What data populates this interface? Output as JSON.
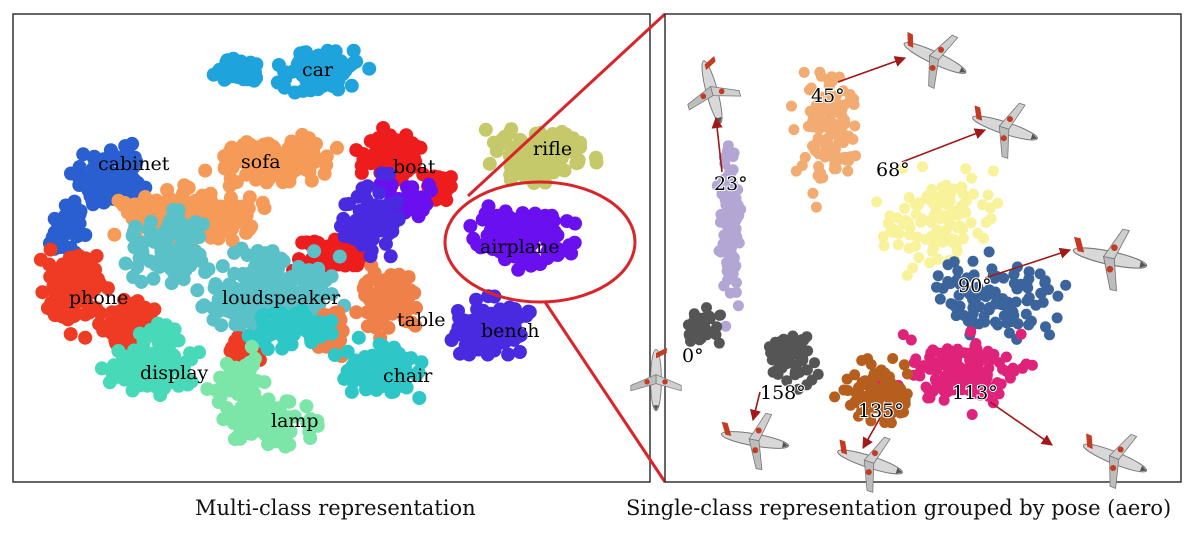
{
  "panels": {
    "left": {
      "caption": "Multi-class representation",
      "clusters": [
        {
          "name": "car",
          "label": "car",
          "color": "#1ea3dc"
        },
        {
          "name": "cabinet",
          "label": "cabinet",
          "color": "#2a5fd1"
        },
        {
          "name": "sofa",
          "label": "sofa",
          "color": "#f59a57"
        },
        {
          "name": "boat",
          "label": "boat",
          "color": "#ee1c1c"
        },
        {
          "name": "rifle",
          "label": "rifle",
          "color": "#c5c96a"
        },
        {
          "name": "airplane",
          "label": "airplane",
          "color": "#6a0ff0"
        },
        {
          "name": "phone",
          "label": "phone",
          "color": "#ef3b24"
        },
        {
          "name": "loudspeaker",
          "label": "loudspeaker",
          "color": "#5bc1c9"
        },
        {
          "name": "table",
          "label": "table",
          "color": "#f0804a"
        },
        {
          "name": "bench",
          "label": "bench",
          "color": "#4a2ae0"
        },
        {
          "name": "display",
          "label": "display",
          "color": "#48d9b8"
        },
        {
          "name": "chair",
          "label": "chair",
          "color": "#2ec7c7"
        },
        {
          "name": "lamp",
          "label": "lamp",
          "color": "#7ce6a8"
        }
      ]
    },
    "right": {
      "caption": "Single-class representation grouped by pose (aero)",
      "poses": [
        {
          "name": "0",
          "label": "0°",
          "color": "#555555"
        },
        {
          "name": "23",
          "label": "23°",
          "color": "#b4a6d4"
        },
        {
          "name": "45",
          "label": "45°",
          "color": "#f2ac72"
        },
        {
          "name": "68",
          "label": "68°",
          "color": "#f8f29a"
        },
        {
          "name": "90",
          "label": "90°",
          "color": "#3c649c"
        },
        {
          "name": "113",
          "label": "113°",
          "color": "#e0237a"
        },
        {
          "name": "135",
          "label": "135°",
          "color": "#b55e1e"
        },
        {
          "name": "158",
          "label": "158°",
          "color": "#555555"
        }
      ]
    }
  },
  "colors": {
    "highlight": "#d9242a",
    "arrow": "#a01818",
    "frame": "#333333"
  }
}
